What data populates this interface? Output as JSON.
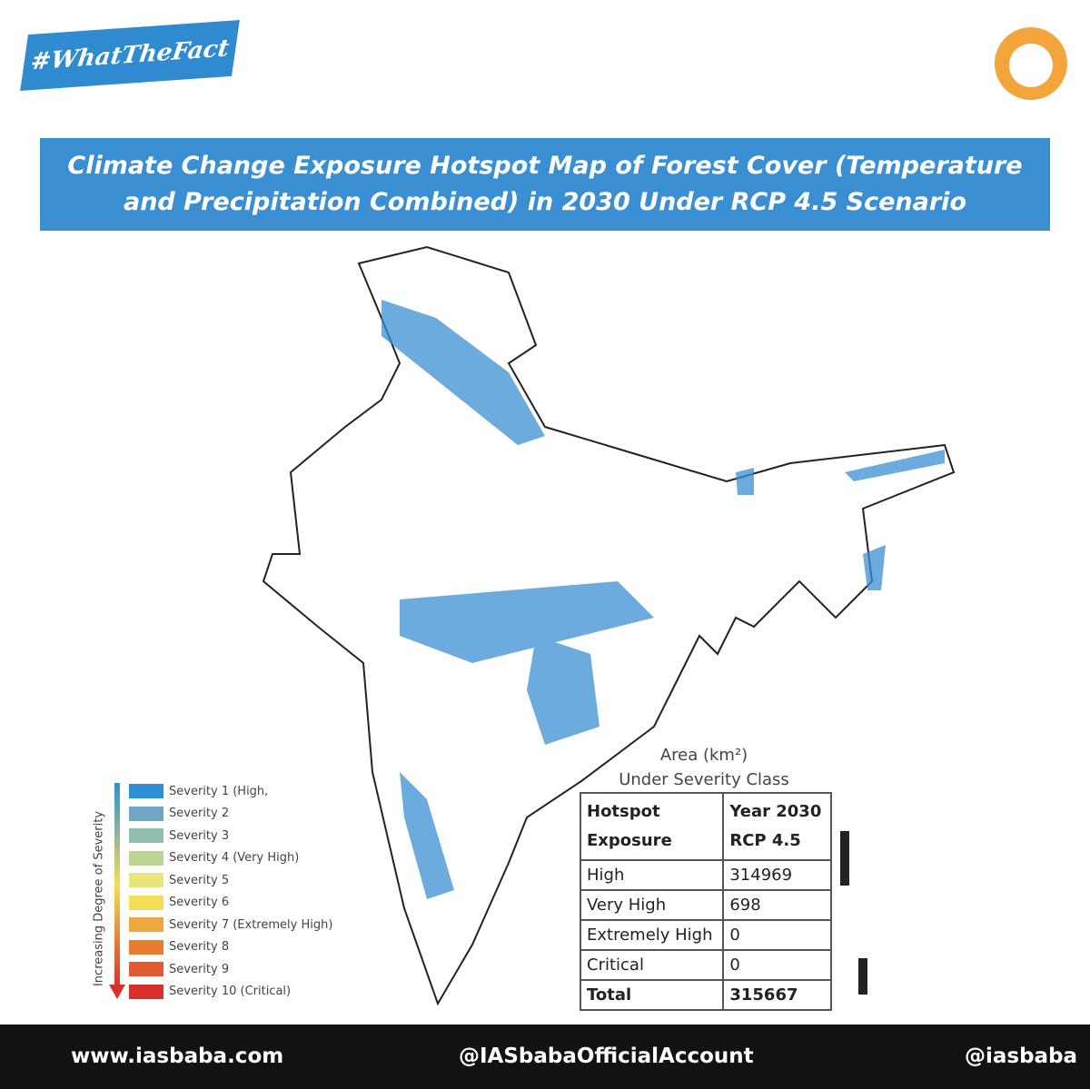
{
  "badge": "#WhatTheFact",
  "title_lines": [
    "Climate Change Exposure Hotspot Map of Forest Cover (Temperature",
    "and Precipitation Combined) in 2030 Under RCP 4.5 Scenario"
  ],
  "legend": {
    "axis_label": "Increasing Degree of Severity",
    "items": [
      {
        "label": "Severity 1 (High,",
        "color": "#2f8fd6"
      },
      {
        "label": "Severity 2",
        "color": "#6fa6c4"
      },
      {
        "label": "Severity 3",
        "color": "#8fbfae"
      },
      {
        "label": "Severity 4 (Very High)",
        "color": "#b9d694"
      },
      {
        "label": "Severity 5",
        "color": "#e6e67a"
      },
      {
        "label": "Severity 6",
        "color": "#f3de55"
      },
      {
        "label": "Severity 7 (Extremely High)",
        "color": "#eda73c"
      },
      {
        "label": "Severity 8",
        "color": "#ea7c32"
      },
      {
        "label": "Severity 9",
        "color": "#e25a30"
      },
      {
        "label": "Severity 10 (Critical)",
        "color": "#d8302c"
      }
    ]
  },
  "table": {
    "caption_lines": [
      "Area (km²)",
      "Under Severity Class"
    ],
    "header": [
      [
        "Hotspot",
        "Exposure"
      ],
      [
        "Year 2030",
        "RCP 4.5"
      ]
    ],
    "rows": [
      [
        "High",
        314969
      ],
      [
        "Very High",
        698
      ],
      [
        "Extremely High",
        0
      ],
      [
        "Critical",
        0
      ]
    ],
    "total": [
      "Total",
      315667
    ]
  },
  "footer": {
    "website": "www.iasbaba.com",
    "telegram": "@IASbabaOfficialAccount",
    "instagram": "@iasbaba"
  }
}
